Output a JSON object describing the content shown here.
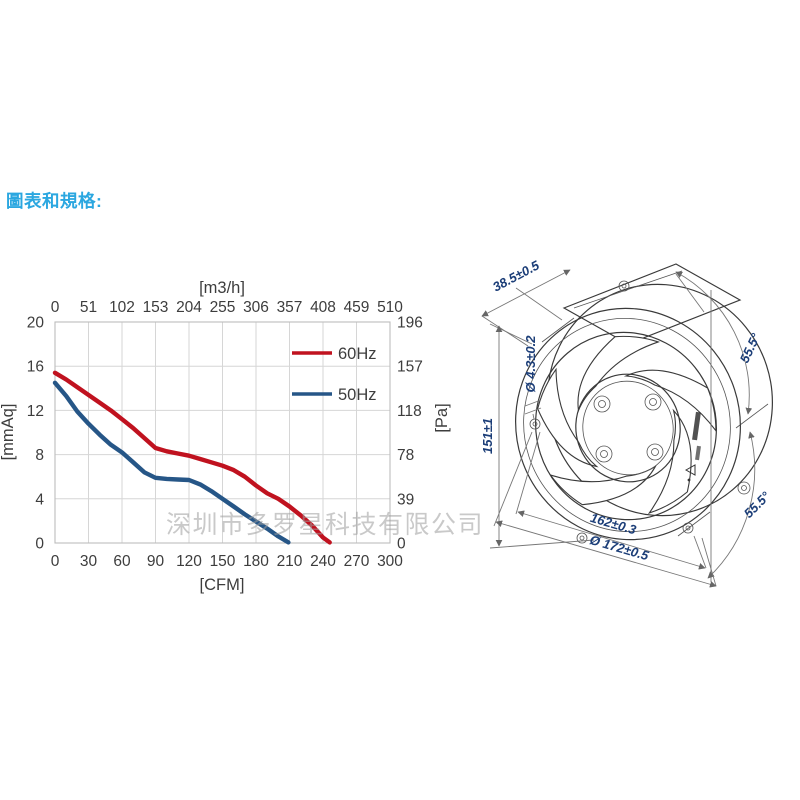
{
  "header": {
    "title": "圖表和規格:",
    "color": "#2ba7e0"
  },
  "watermark": {
    "text": "深圳市多罗星科技有限公司",
    "color": "#9e9e9e"
  },
  "chart_data": {
    "type": "line",
    "grid": true,
    "legend_position": "top-right",
    "text_color": "#3d3d3d",
    "grid_color": "#d6d6d6",
    "border_color": "#bdbdbd",
    "x_axis_bottom": {
      "label": "[CFM]",
      "range": [
        0,
        300
      ],
      "ticks": [
        0,
        30,
        60,
        90,
        120,
        150,
        180,
        210,
        240,
        270,
        300
      ]
    },
    "x_axis_top": {
      "label": "[m3/h]",
      "ticks": [
        0,
        51,
        102,
        153,
        204,
        255,
        306,
        357,
        408,
        459,
        510
      ]
    },
    "y_axis_left": {
      "label": "[mmAq]",
      "range": [
        0,
        20
      ],
      "ticks": [
        0,
        4,
        8,
        12,
        16,
        20
      ]
    },
    "y_axis_right": {
      "label": "[Pa]",
      "ticks": [
        0,
        39,
        78,
        118,
        157,
        196
      ]
    },
    "series": [
      {
        "name": "60Hz",
        "color": "#c0121f",
        "x": [
          0,
          10,
          20,
          30,
          40,
          50,
          60,
          70,
          80,
          90,
          100,
          110,
          120,
          130,
          140,
          150,
          160,
          170,
          180,
          190,
          200,
          210,
          220,
          230,
          240,
          246
        ],
        "y": [
          15.4,
          14.8,
          14.1,
          13.4,
          12.7,
          12.0,
          11.2,
          10.4,
          9.5,
          8.6,
          8.3,
          8.1,
          7.9,
          7.6,
          7.3,
          7.0,
          6.6,
          6.0,
          5.2,
          4.5,
          4.0,
          3.3,
          2.5,
          1.6,
          0.5,
          0.05
        ]
      },
      {
        "name": "50Hz",
        "color": "#265687",
        "x": [
          0,
          10,
          20,
          30,
          40,
          50,
          60,
          70,
          80,
          90,
          100,
          110,
          120,
          130,
          140,
          150,
          160,
          170,
          180,
          190,
          200,
          209
        ],
        "y": [
          14.5,
          13.3,
          11.9,
          10.8,
          9.8,
          8.9,
          8.2,
          7.3,
          6.4,
          5.9,
          5.8,
          5.75,
          5.7,
          5.3,
          4.7,
          4.0,
          3.3,
          2.6,
          1.95,
          1.3,
          0.6,
          0.05
        ]
      }
    ]
  },
  "fan_drawing": {
    "label_color": "#1c3e78",
    "dimensions": {
      "depth": "38.5±0.5",
      "height": "151±1",
      "hole_diameter": "Ø 4.3±0.2",
      "angle_top": "55.5°",
      "angle_bottom": "55.5°",
      "bolt_spacing": "162±0.3",
      "outer_diameter": "Ø 172±0.5"
    }
  }
}
